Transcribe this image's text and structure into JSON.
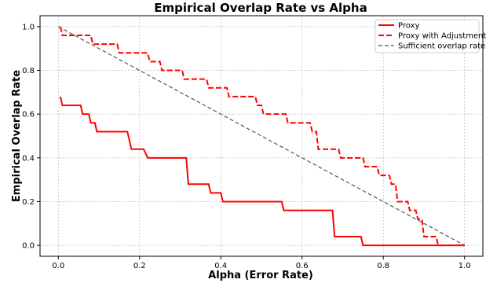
{
  "chart_data": {
    "type": "line",
    "title": "Empirical Overlap Rate vs Alpha",
    "xlabel": "Alpha (Error Rate)",
    "ylabel": "Empirical Overlap Rate",
    "xlim": [
      -0.045,
      1.045
    ],
    "ylim": [
      -0.05,
      1.05
    ],
    "xticks": [
      0.0,
      0.2,
      0.4,
      0.6,
      0.8,
      1.0
    ],
    "xtick_labels": [
      "0.0",
      "0.2",
      "0.4",
      "0.6",
      "0.8",
      "1.0"
    ],
    "yticks": [
      0.0,
      0.2,
      0.4,
      0.6,
      0.8,
      1.0
    ],
    "ytick_labels": [
      "0.0",
      "0.2",
      "0.4",
      "0.6",
      "0.8",
      "1.0"
    ],
    "grid": true,
    "legend_position": "top-right",
    "series": [
      {
        "name": "Proxy",
        "style": "solid",
        "color": "#ff0000",
        "x": [
          0.005,
          0.01,
          0.055,
          0.06,
          0.075,
          0.08,
          0.09,
          0.095,
          0.17,
          0.175,
          0.18,
          0.21,
          0.215,
          0.22,
          0.315,
          0.32,
          0.37,
          0.375,
          0.4,
          0.405,
          0.55,
          0.555,
          0.675,
          0.68,
          0.745,
          0.75,
          1.0
        ],
        "y": [
          0.68,
          0.64,
          0.64,
          0.6,
          0.6,
          0.56,
          0.56,
          0.52,
          0.52,
          0.48,
          0.44,
          0.44,
          0.42,
          0.4,
          0.4,
          0.28,
          0.28,
          0.24,
          0.24,
          0.2,
          0.2,
          0.16,
          0.16,
          0.04,
          0.04,
          0.0,
          0.0
        ]
      },
      {
        "name": "Proxy with Adjustments",
        "style": "dashed",
        "color": "#ff0000",
        "x": [
          0.005,
          0.01,
          0.08,
          0.085,
          0.145,
          0.15,
          0.22,
          0.225,
          0.25,
          0.255,
          0.305,
          0.31,
          0.365,
          0.37,
          0.415,
          0.42,
          0.485,
          0.49,
          0.5,
          0.505,
          0.56,
          0.565,
          0.62,
          0.625,
          0.635,
          0.64,
          0.69,
          0.695,
          0.75,
          0.755,
          0.785,
          0.79,
          0.815,
          0.82,
          0.83,
          0.835,
          0.86,
          0.865,
          0.88,
          0.885,
          0.895,
          0.9,
          0.93,
          0.935,
          1.0
        ],
        "y": [
          1.0,
          0.96,
          0.96,
          0.92,
          0.92,
          0.88,
          0.88,
          0.84,
          0.84,
          0.8,
          0.8,
          0.76,
          0.76,
          0.72,
          0.72,
          0.68,
          0.68,
          0.64,
          0.64,
          0.6,
          0.6,
          0.56,
          0.56,
          0.52,
          0.52,
          0.44,
          0.44,
          0.4,
          0.4,
          0.36,
          0.36,
          0.32,
          0.32,
          0.28,
          0.28,
          0.2,
          0.2,
          0.16,
          0.16,
          0.12,
          0.12,
          0.04,
          0.04,
          0.0,
          0.0
        ]
      },
      {
        "name": "Sufficient overlap rate",
        "style": "dashed",
        "color": "#555555",
        "x": [
          0.0,
          1.0
        ],
        "y": [
          1.0,
          0.0
        ]
      }
    ]
  }
}
